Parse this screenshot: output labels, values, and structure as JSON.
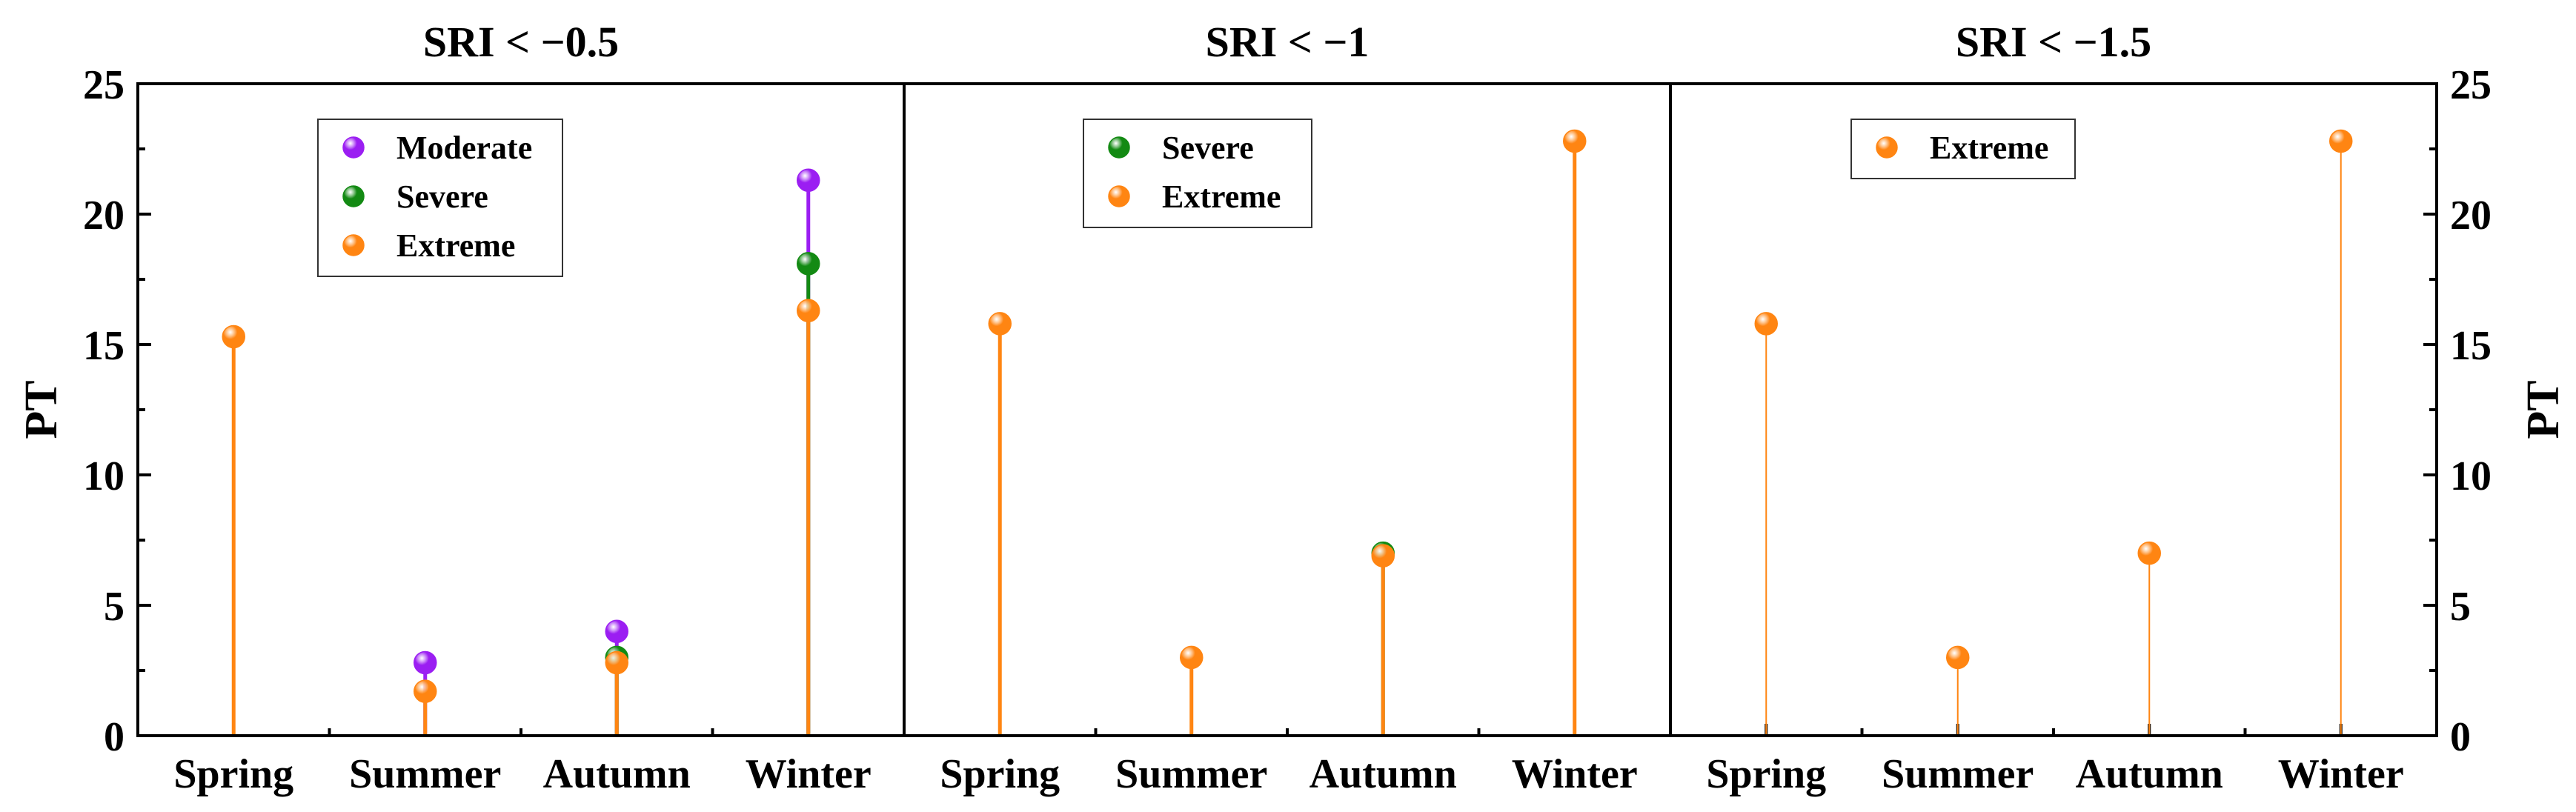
{
  "colors": {
    "Moderate": "#9b1ef2",
    "Severe": "#138a13",
    "Extreme": "#ff8512"
  },
  "chart_data": [
    {
      "type": "lollipop",
      "title": "SRI < −0.5",
      "ylabel": "PT",
      "ylim": [
        0,
        25
      ],
      "yticks": [
        0,
        5,
        10,
        15,
        20,
        25
      ],
      "categories": [
        "Spring",
        "Summer",
        "Autumn",
        "Winter"
      ],
      "legend": [
        "Moderate",
        "Severe",
        "Extreme"
      ],
      "legend_position": "top-left",
      "series": [
        {
          "name": "Moderate",
          "values": [
            null,
            2.8,
            4.0,
            21.3
          ]
        },
        {
          "name": "Severe",
          "values": [
            null,
            null,
            3.0,
            18.1
          ]
        },
        {
          "name": "Extreme",
          "values": [
            15.3,
            1.7,
            2.8,
            16.3
          ]
        }
      ]
    },
    {
      "type": "lollipop",
      "title": "SRI < −1",
      "ylabel": "PT",
      "ylim": [
        0,
        25
      ],
      "yticks": [
        0,
        5,
        10,
        15,
        20,
        25
      ],
      "categories": [
        "Spring",
        "Summer",
        "Autumn",
        "Winter"
      ],
      "legend": [
        "Severe",
        "Extreme"
      ],
      "legend_position": "top-left",
      "series": [
        {
          "name": "Severe",
          "values": [
            null,
            null,
            7.0,
            null
          ]
        },
        {
          "name": "Extreme",
          "values": [
            15.8,
            3.0,
            6.9,
            22.8
          ]
        }
      ]
    },
    {
      "type": "lollipop",
      "title": "SRI < −1.5",
      "ylabel": "PT",
      "ylim": [
        0,
        25
      ],
      "yticks": [
        0,
        5,
        10,
        15,
        20,
        25
      ],
      "categories": [
        "Spring",
        "Summer",
        "Autumn",
        "Winter"
      ],
      "legend": [
        "Extreme"
      ],
      "legend_position": "top-left",
      "series": [
        {
          "name": "Extreme",
          "values": [
            15.8,
            3.0,
            7.0,
            22.8
          ]
        }
      ]
    }
  ]
}
